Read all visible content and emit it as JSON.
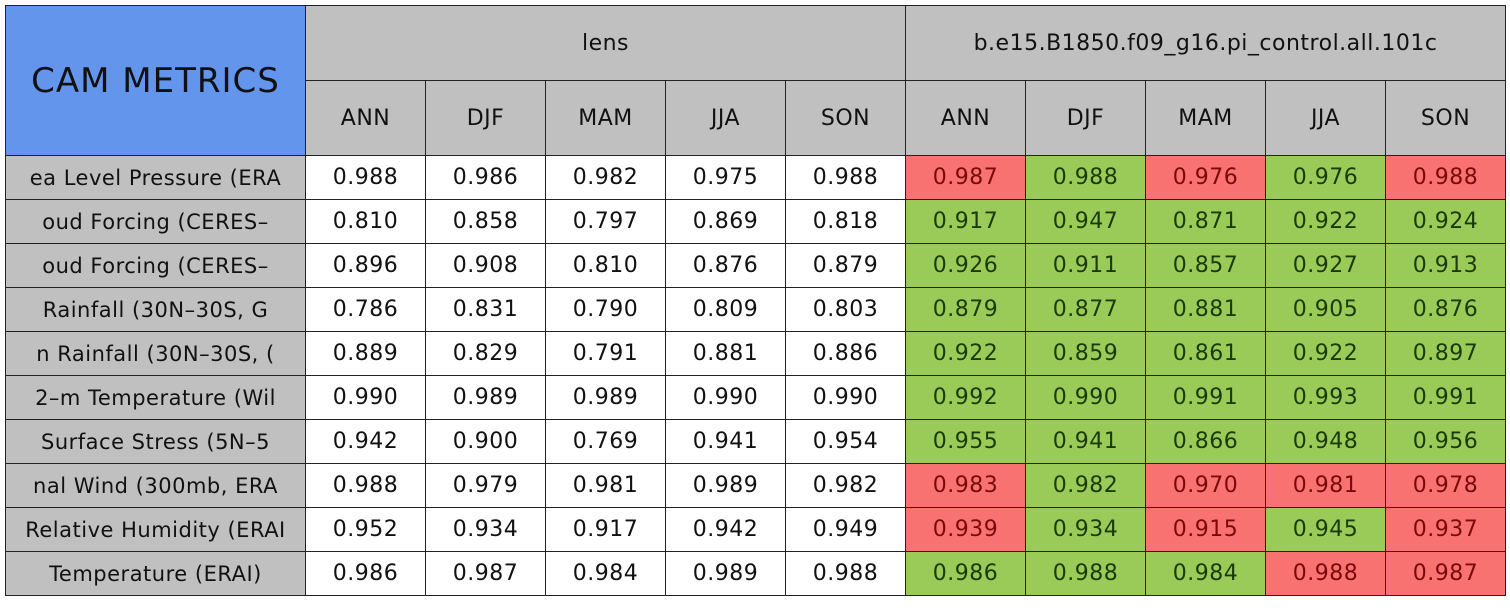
{
  "table": {
    "corner": "CAM METRICS",
    "groups": [
      "lens",
      "b.e15.B1850.f09_g16.pi_control.all.101c"
    ],
    "seasons": [
      "ANN",
      "DJF",
      "MAM",
      "JJA",
      "SON"
    ],
    "colors": {
      "header": "#c0c0c0",
      "corner": "#6495ed",
      "row_label": "#c0c0c0",
      "plain": "#ffffff",
      "better": "#9acb58",
      "worse": "#f87272"
    },
    "rows": [
      {
        "label": "ea Level Pressure (ERA",
        "lens": [
          "0.988",
          "0.986",
          "0.982",
          "0.975",
          "0.988"
        ],
        "case": [
          "0.987",
          "0.988",
          "0.976",
          "0.976",
          "0.988"
        ],
        "case_colors": [
          "worse",
          "better",
          "worse",
          "better",
          "worse"
        ]
      },
      {
        "label": "oud Forcing (CERES–",
        "lens": [
          "0.810",
          "0.858",
          "0.797",
          "0.869",
          "0.818"
        ],
        "case": [
          "0.917",
          "0.947",
          "0.871",
          "0.922",
          "0.924"
        ],
        "case_colors": [
          "better",
          "better",
          "better",
          "better",
          "better"
        ]
      },
      {
        "label": "oud Forcing (CERES–",
        "lens": [
          "0.896",
          "0.908",
          "0.810",
          "0.876",
          "0.879"
        ],
        "case": [
          "0.926",
          "0.911",
          "0.857",
          "0.927",
          "0.913"
        ],
        "case_colors": [
          "better",
          "better",
          "better",
          "better",
          "better"
        ]
      },
      {
        "label": "Rainfall (30N–30S, G",
        "lens": [
          "0.786",
          "0.831",
          "0.790",
          "0.809",
          "0.803"
        ],
        "case": [
          "0.879",
          "0.877",
          "0.881",
          "0.905",
          "0.876"
        ],
        "case_colors": [
          "better",
          "better",
          "better",
          "better",
          "better"
        ]
      },
      {
        "label": "n Rainfall (30N–30S, (",
        "lens": [
          "0.889",
          "0.829",
          "0.791",
          "0.881",
          "0.886"
        ],
        "case": [
          "0.922",
          "0.859",
          "0.861",
          "0.922",
          "0.897"
        ],
        "case_colors": [
          "better",
          "better",
          "better",
          "better",
          "better"
        ]
      },
      {
        "label": "2–m Temperature (Wil",
        "lens": [
          "0.990",
          "0.989",
          "0.989",
          "0.990",
          "0.990"
        ],
        "case": [
          "0.992",
          "0.990",
          "0.991",
          "0.993",
          "0.991"
        ],
        "case_colors": [
          "better",
          "better",
          "better",
          "better",
          "better"
        ]
      },
      {
        "label": "Surface Stress (5N–5",
        "lens": [
          "0.942",
          "0.900",
          "0.769",
          "0.941",
          "0.954"
        ],
        "case": [
          "0.955",
          "0.941",
          "0.866",
          "0.948",
          "0.956"
        ],
        "case_colors": [
          "better",
          "better",
          "better",
          "better",
          "better"
        ]
      },
      {
        "label": "nal Wind (300mb, ERA",
        "lens": [
          "0.988",
          "0.979",
          "0.981",
          "0.989",
          "0.982"
        ],
        "case": [
          "0.983",
          "0.982",
          "0.970",
          "0.981",
          "0.978"
        ],
        "case_colors": [
          "worse",
          "better",
          "worse",
          "worse",
          "worse"
        ]
      },
      {
        "label": "Relative Humidity (ERAI",
        "lens": [
          "0.952",
          "0.934",
          "0.917",
          "0.942",
          "0.949"
        ],
        "case": [
          "0.939",
          "0.934",
          "0.915",
          "0.945",
          "0.937"
        ],
        "case_colors": [
          "worse",
          "better",
          "worse",
          "better",
          "worse"
        ]
      },
      {
        "label": "Temperature (ERAI)",
        "lens": [
          "0.986",
          "0.987",
          "0.984",
          "0.989",
          "0.988"
        ],
        "case": [
          "0.986",
          "0.988",
          "0.984",
          "0.988",
          "0.987"
        ],
        "case_colors": [
          "better",
          "better",
          "better",
          "worse",
          "worse"
        ]
      }
    ]
  }
}
